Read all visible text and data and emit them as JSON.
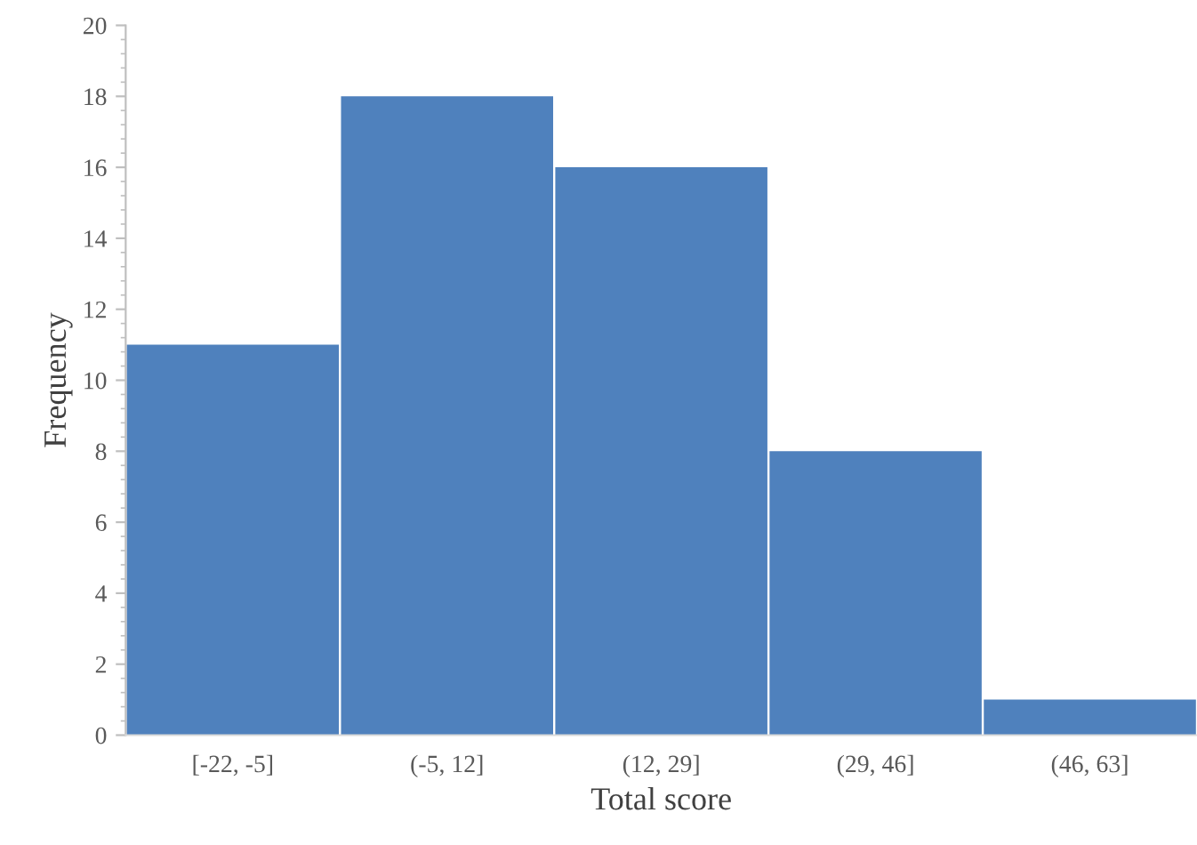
{
  "chart_data": {
    "type": "bar",
    "xlabel": "Total score",
    "ylabel": "Frequency",
    "categories": [
      "[-22, -5]",
      "(-5, 12]",
      "(12, 29]",
      "(29, 46]",
      "(46, 63]"
    ],
    "values": [
      11,
      18,
      16,
      8,
      1
    ],
    "color": "#4f81bd",
    "ylim": [
      0,
      20
    ],
    "yticks": [
      0,
      2,
      4,
      6,
      8,
      10,
      12,
      14,
      16,
      18,
      20
    ],
    "grid": false
  }
}
